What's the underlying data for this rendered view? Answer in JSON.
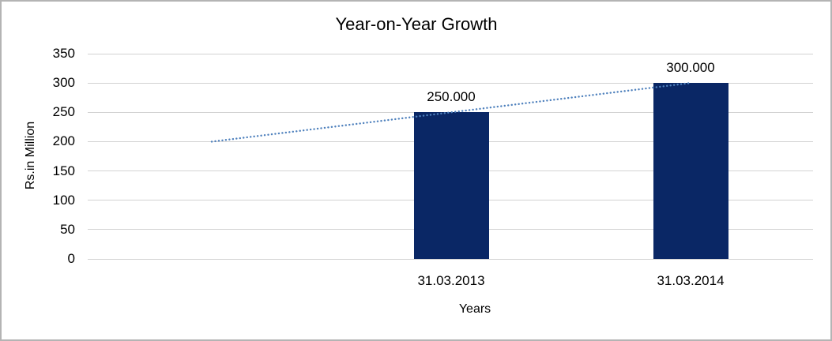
{
  "chart_data": {
    "type": "bar",
    "title": "Year-on-Year Growth",
    "xlabel": "Years",
    "ylabel": "Rs.in Million",
    "categories": [
      "31.03.2013",
      "31.03.2014"
    ],
    "values": [
      250,
      300
    ],
    "data_labels": [
      "250.000",
      "300.000"
    ],
    "yticks": [
      0,
      50,
      100,
      150,
      200,
      250,
      300,
      350
    ],
    "ylim": [
      0,
      350
    ],
    "grid": true,
    "legend": "none",
    "bar_color": "#0a2765",
    "grid_color": "#d2d2d2",
    "text_color": "#000000",
    "trendline": {
      "type": "linear-dotted",
      "color": "#4f81bd",
      "start": {
        "category_index": -1,
        "value": 200
      },
      "end": {
        "category_index": 1,
        "value": 300
      }
    }
  }
}
